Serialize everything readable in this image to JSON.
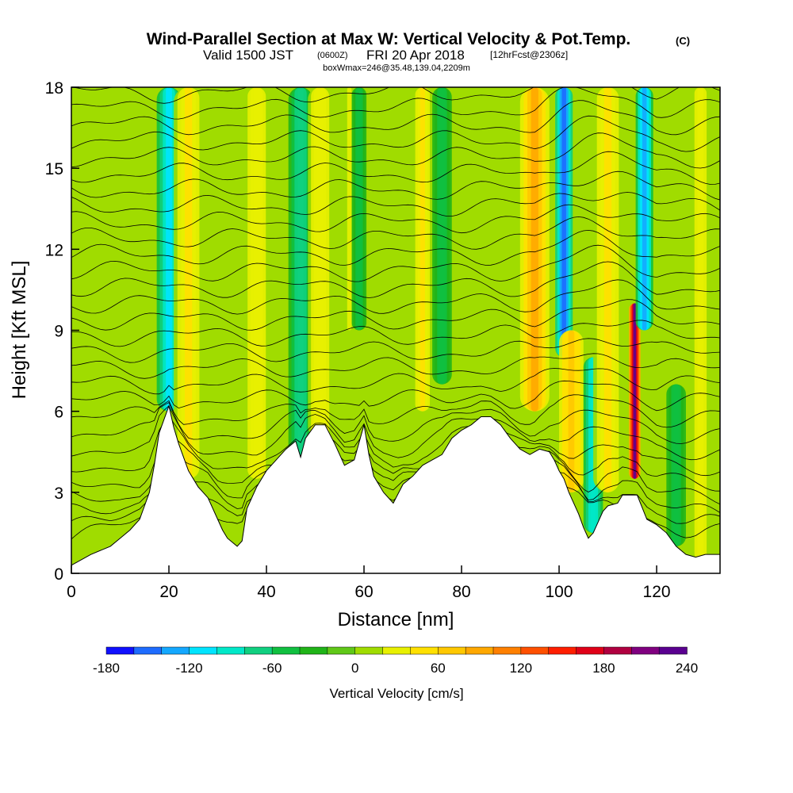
{
  "figure": {
    "title_main": "Wind-Parallel Section at Max W: Vertical Velocity & Pot.Temp.",
    "title_mark": "(C)",
    "subtitle_a": "Valid 1500 JST",
    "subtitle_b": "(0600Z)",
    "subtitle_c": "FRI 20 Apr 2018",
    "subtitle_d": "[12hrFcst@2306z]",
    "subtitle_e": "boxWmax=246@35.48,139.04,2209m"
  },
  "chart_data": {
    "type": "heatmap",
    "xlabel": "Distance [nm]",
    "ylabel": "Height [Kft MSL]",
    "xlim": [
      0,
      133
    ],
    "ylim": [
      0,
      18
    ],
    "x_ticks": [
      0,
      20,
      40,
      60,
      80,
      100,
      120
    ],
    "y_ticks": [
      0,
      3,
      6,
      9,
      12,
      15,
      18
    ],
    "colorbar": {
      "label": "Vertical Velocity [cm/s]",
      "min": -180,
      "max": 240,
      "step": 20,
      "tick_values": [
        -180,
        -120,
        -60,
        0,
        60,
        120,
        180,
        240
      ],
      "colors": [
        "#1010ff",
        "#1e6cff",
        "#14a8ff",
        "#00e4ff",
        "#00e8c8",
        "#10d080",
        "#10c040",
        "#20b418",
        "#60c818",
        "#a0dc00",
        "#e8f000",
        "#ffe000",
        "#ffc800",
        "#ffa800",
        "#ff8000",
        "#ff5000",
        "#ff1e00",
        "#e00018",
        "#b00040",
        "#800080",
        "#5a0090"
      ]
    },
    "terrain": {
      "x": [
        0,
        4,
        8,
        10,
        12,
        14,
        16,
        17,
        18,
        20,
        21,
        22,
        23,
        24,
        25,
        26,
        28,
        30,
        31,
        32,
        34,
        35,
        36,
        38,
        40,
        42,
        44,
        46,
        47,
        48,
        50,
        52,
        54,
        56,
        58,
        60,
        61,
        62,
        64,
        66,
        68,
        70,
        72,
        74,
        76,
        78,
        80,
        82,
        84,
        86,
        88,
        90,
        92,
        94,
        96,
        98,
        99,
        100,
        101,
        102,
        104,
        105,
        106,
        107,
        108,
        109,
        110,
        112,
        113,
        114,
        116,
        118,
        120,
        122,
        124,
        126,
        128,
        130,
        133
      ],
      "y": [
        0.3,
        0.7,
        1.0,
        1.3,
        1.6,
        2.0,
        3.0,
        4.0,
        5.2,
        6.2,
        5.4,
        4.8,
        4.3,
        3.8,
        3.5,
        3.2,
        2.8,
        2.0,
        1.6,
        1.3,
        1.0,
        1.2,
        2.4,
        3.2,
        3.8,
        4.2,
        4.6,
        4.9,
        4.3,
        5.0,
        5.5,
        5.5,
        4.8,
        4.0,
        4.2,
        5.5,
        4.4,
        3.6,
        3.0,
        2.6,
        3.3,
        3.6,
        4.0,
        4.2,
        4.4,
        5.0,
        5.3,
        5.5,
        5.8,
        5.8,
        5.5,
        5.0,
        4.6,
        4.4,
        4.6,
        4.5,
        4.2,
        3.8,
        3.5,
        3.0,
        2.2,
        1.7,
        1.3,
        1.5,
        1.9,
        2.3,
        2.5,
        2.6,
        2.9,
        2.9,
        2.9,
        2.0,
        1.8,
        1.5,
        1.0,
        0.7,
        0.6,
        0.7,
        0.7
      ]
    },
    "vertical_velocity_features": [
      {
        "x": 20,
        "ybot": 6,
        "ytop": 18,
        "width": 2.5,
        "value": -110
      },
      {
        "x": 24,
        "ybot": 3.5,
        "ytop": 18,
        "width": 3,
        "value": 45
      },
      {
        "x": 38,
        "ybot": 3.5,
        "ytop": 18,
        "width": 2.5,
        "value": 35
      },
      {
        "x": 47,
        "ybot": 4.2,
        "ytop": 18,
        "width": 2.5,
        "value": -80
      },
      {
        "x": 51,
        "ybot": 5,
        "ytop": 18,
        "width": 2.5,
        "value": 35
      },
      {
        "x": 57,
        "ybot": 9,
        "ytop": 18,
        "width": 1.8,
        "value": 20
      },
      {
        "x": 59,
        "ybot": 9,
        "ytop": 18,
        "width": 1.5,
        "value": -60
      },
      {
        "x": 72,
        "ybot": 6,
        "ytop": 18,
        "width": 2,
        "value": 40
      },
      {
        "x": 76,
        "ybot": 7,
        "ytop": 18,
        "width": 2,
        "value": -60
      },
      {
        "x": 95,
        "ybot": 6,
        "ytop": 18,
        "width": 3,
        "value": 80
      },
      {
        "x": 101,
        "ybot": 8,
        "ytop": 18,
        "width": 1.8,
        "value": -160
      },
      {
        "x": 102.5,
        "ybot": 3,
        "ytop": 9,
        "width": 2.5,
        "value": 70
      },
      {
        "x": 107,
        "ybot": 1.5,
        "ytop": 8,
        "width": 2,
        "value": -100
      },
      {
        "x": 110,
        "ybot": 3,
        "ytop": 18,
        "width": 3,
        "value": 40
      },
      {
        "x": 115.5,
        "ybot": 3.5,
        "ytop": 10,
        "width": 1.2,
        "value": 220
      },
      {
        "x": 117.5,
        "ybot": 9,
        "ytop": 18,
        "width": 1.8,
        "value": -130
      },
      {
        "x": 124,
        "ybot": 1,
        "ytop": 7,
        "width": 2,
        "value": -60
      },
      {
        "x": 129,
        "ybot": 0.5,
        "ytop": 18,
        "width": 2.5,
        "value": 30
      }
    ]
  }
}
